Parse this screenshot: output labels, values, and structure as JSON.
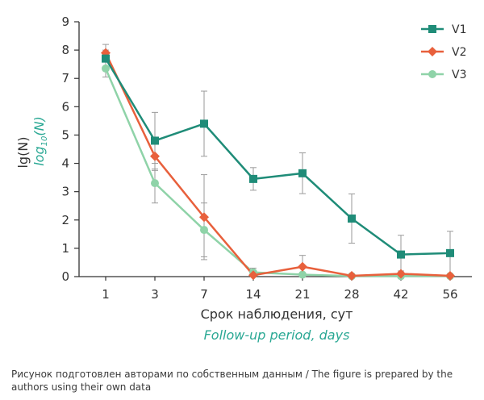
{
  "chart_data": {
    "type": "line",
    "categories": [
      "1",
      "3",
      "7",
      "14",
      "21",
      "28",
      "42",
      "56"
    ],
    "ylim": [
      0,
      9
    ],
    "yticks": [
      "0",
      "1",
      "2",
      "3",
      "4",
      "5",
      "6",
      "7",
      "8",
      "9"
    ],
    "ylabel_ru": "lg(N)",
    "ylabel_en_main": "log",
    "ylabel_en_sub": "10",
    "ylabel_en_tail": "(N)",
    "xlabel_ru": "Срок наблюдения, сут",
    "xlabel_en": "Follow-up period, days",
    "legend_position": "top-right",
    "grid": false,
    "series": [
      {
        "name": "V1",
        "color": "#1f8c78",
        "marker": "square",
        "values": [
          7.7,
          4.8,
          5.4,
          3.45,
          3.65,
          2.05,
          0.78,
          0.83
        ],
        "errors": [
          0.3,
          1.0,
          1.15,
          0.4,
          0.72,
          0.87,
          0.68,
          0.77
        ]
      },
      {
        "name": "V2",
        "color": "#e8603c",
        "marker": "diamond",
        "values": [
          7.9,
          4.25,
          2.1,
          0.05,
          0.35,
          0.03,
          0.1,
          0.03
        ],
        "errors": [
          0.3,
          0.5,
          1.5,
          0.1,
          0.4,
          0.05,
          0.1,
          0.05
        ]
      },
      {
        "name": "V3",
        "color": "#8fd3a8",
        "marker": "circle",
        "values": [
          7.35,
          3.3,
          1.65,
          0.15,
          0.07,
          0.02,
          0.02,
          0.02
        ],
        "errors": [
          0.3,
          0.7,
          0.95,
          0.15,
          0.05,
          0.03,
          0.03,
          0.03
        ]
      }
    ]
  },
  "caption": "Рисунок подготовлен авторами по собственным данным / The figure is prepared by the authors using their own data"
}
